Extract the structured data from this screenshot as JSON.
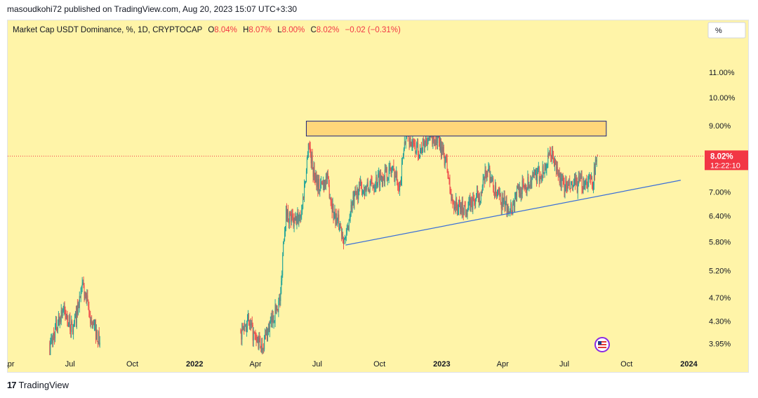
{
  "header": {
    "published_line": "masoudkohi72 published on TradingView.com, Aug 20, 2023 15:07 UTC+3:30"
  },
  "legend": {
    "symbol": "Market Cap USDT Dominance, %, 1D, CRYPTOCAP",
    "o_label": "O",
    "o_value": "8.04%",
    "h_label": "H",
    "h_value": "8.07%",
    "l_label": "L",
    "l_value": "8.00%",
    "c_label": "C",
    "c_value": "8.02%",
    "change": "−0.02 (−0.31%)"
  },
  "scale_button": "%",
  "price_tag": {
    "value": "8.02%",
    "countdown": "12:22:10"
  },
  "footer": {
    "logo": "17",
    "brand": "TradingView"
  },
  "colors": {
    "background": "#fff4a8",
    "up": "#26a69a",
    "down": "#ef5350",
    "trendline": "#3a6fd8",
    "zone_fill": "#ffd77a",
    "zone_border": "#1a237e",
    "price_tag": "#f23645"
  },
  "chart_data": {
    "type": "candlestick",
    "y_scale": "log",
    "ylim": [
      3.78,
      12.4
    ],
    "y_ticks": [
      "11.00%",
      "10.00%",
      "9.00%",
      "8.00%",
      "7.00%",
      "6.40%",
      "5.80%",
      "5.20%",
      "4.70%",
      "4.30%",
      "3.95%"
    ],
    "x_ticks": [
      "Apr",
      "Jul",
      "Oct",
      "2022",
      "Apr",
      "Jul",
      "Oct",
      "2023",
      "Apr",
      "Jul",
      "Oct",
      "2024"
    ],
    "x_tick_dates": [
      "2021-04-01",
      "2021-07-01",
      "2021-10-01",
      "2022-01-01",
      "2022-04-01",
      "2022-07-01",
      "2022-10-01",
      "2023-01-01",
      "2023-04-01",
      "2023-07-01",
      "2023-10-01",
      "2024-01-01"
    ],
    "x_range": [
      "2021-04-01",
      "2024-01-15"
    ],
    "close_path": [
      [
        "2021-06-01",
        3.9
      ],
      [
        "2021-06-20",
        4.5
      ],
      [
        "2021-07-05",
        4.15
      ],
      [
        "2021-07-20",
        4.9
      ],
      [
        "2021-08-01",
        4.3
      ],
      [
        "2021-08-15",
        3.95
      ],
      [
        "2022-03-10",
        4.1
      ],
      [
        "2022-03-20",
        4.3
      ],
      [
        "2022-04-01",
        4.0
      ],
      [
        "2022-04-10",
        3.9
      ],
      [
        "2022-04-25",
        4.3
      ],
      [
        "2022-05-08",
        4.7
      ],
      [
        "2022-05-12",
        5.8
      ],
      [
        "2022-05-16",
        6.5
      ],
      [
        "2022-05-28",
        6.2
      ],
      [
        "2022-06-08",
        6.5
      ],
      [
        "2022-06-15",
        7.6
      ],
      [
        "2022-06-18",
        8.5
      ],
      [
        "2022-06-25",
        7.6
      ],
      [
        "2022-07-05",
        7.1
      ],
      [
        "2022-07-15",
        7.4
      ],
      [
        "2022-07-25",
        6.5
      ],
      [
        "2022-08-05",
        6.1
      ],
      [
        "2022-08-12",
        5.8
      ],
      [
        "2022-08-20",
        6.6
      ],
      [
        "2022-09-01",
        7.1
      ],
      [
        "2022-09-15",
        7.1
      ],
      [
        "2022-10-01",
        7.4
      ],
      [
        "2022-10-20",
        7.6
      ],
      [
        "2022-11-01",
        7.2
      ],
      [
        "2022-11-09",
        8.8
      ],
      [
        "2022-11-20",
        8.3
      ],
      [
        "2022-12-01",
        8.2
      ],
      [
        "2022-12-10",
        8.6
      ],
      [
        "2022-12-20",
        8.6
      ],
      [
        "2022-12-28",
        8.4
      ],
      [
        "2023-01-08",
        7.8
      ],
      [
        "2023-01-15",
        6.8
      ],
      [
        "2023-01-25",
        6.6
      ],
      [
        "2023-02-08",
        6.6
      ],
      [
        "2023-02-20",
        6.8
      ],
      [
        "2023-03-01",
        7.0
      ],
      [
        "2023-03-10",
        7.7
      ],
      [
        "2023-03-20",
        7.0
      ],
      [
        "2023-04-01",
        6.7
      ],
      [
        "2023-04-15",
        6.6
      ],
      [
        "2023-04-22",
        7.0
      ],
      [
        "2023-05-05",
        7.2
      ],
      [
        "2023-05-20",
        7.4
      ],
      [
        "2023-06-01",
        7.6
      ],
      [
        "2023-06-12",
        8.1
      ],
      [
        "2023-06-20",
        7.6
      ],
      [
        "2023-06-28",
        7.2
      ],
      [
        "2023-07-08",
        7.1
      ],
      [
        "2023-07-20",
        7.2
      ],
      [
        "2023-08-01",
        7.3
      ],
      [
        "2023-08-12",
        7.3
      ],
      [
        "2023-08-17",
        7.8
      ],
      [
        "2023-08-19",
        8.02
      ]
    ],
    "last": {
      "date": "2023-08-19",
      "open": 8.04,
      "high": 8.07,
      "low": 8.0,
      "close": 8.02
    },
    "annotations": {
      "resistance_zone": {
        "start": "2022-06-15",
        "end": "2023-09-01",
        "low": 8.65,
        "high": 9.15
      },
      "trendline": {
        "from": [
          "2022-08-12",
          5.73
        ],
        "to": [
          "2023-12-20",
          7.32
        ]
      },
      "last_price_line": 8.02
    }
  }
}
